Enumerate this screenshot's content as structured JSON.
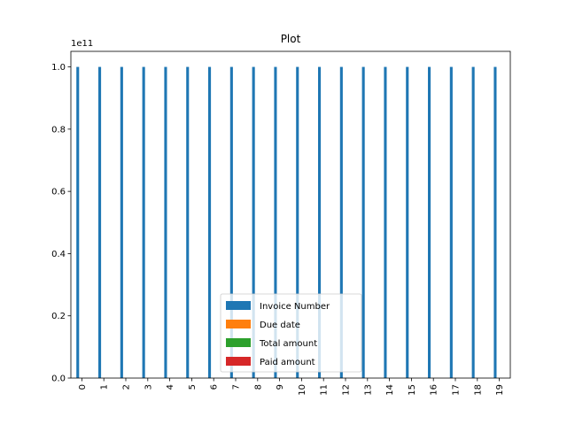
{
  "chart_data": {
    "type": "bar",
    "title": "Plot",
    "xlabel": "",
    "ylabel": "",
    "y_offset_text": "1e11",
    "ylim": [
      0,
      1.05
    ],
    "y_ticks": [
      "0.0",
      "0.2",
      "0.4",
      "0.6",
      "0.8",
      "1.0"
    ],
    "y_tick_values": [
      0.0,
      0.2,
      0.4,
      0.6,
      0.8,
      1.0
    ],
    "categories": [
      "0",
      "1",
      "2",
      "3",
      "4",
      "5",
      "6",
      "7",
      "8",
      "9",
      "10",
      "11",
      "12",
      "13",
      "14",
      "15",
      "16",
      "17",
      "18",
      "19"
    ],
    "series": [
      {
        "name": "Invoice Number",
        "color": "#1f77b4",
        "values": [
          1.0,
          1.0,
          1.0,
          1.0,
          1.0,
          1.0,
          1.0,
          1.0,
          1.0,
          1.0,
          1.0,
          1.0,
          1.0,
          1.0,
          1.0,
          1.0,
          1.0,
          1.0,
          1.0,
          1.0
        ]
      },
      {
        "name": "Due date",
        "color": "#ff7f0e",
        "values": [
          0,
          0,
          0,
          0,
          0,
          0,
          0,
          0,
          0,
          0,
          0,
          0,
          0,
          0,
          0,
          0,
          0,
          0,
          0,
          0
        ]
      },
      {
        "name": "Total amount",
        "color": "#2ca02c",
        "values": [
          0,
          0,
          0,
          0,
          0,
          0,
          0,
          0,
          0,
          0,
          0,
          0,
          0,
          0,
          0,
          0,
          0,
          0,
          0,
          0
        ]
      },
      {
        "name": "Paid amount",
        "color": "#d62728",
        "values": [
          0,
          0,
          0,
          0,
          0,
          0,
          0,
          0,
          0,
          0,
          0,
          0,
          0,
          0,
          0,
          0,
          0,
          0,
          0,
          0
        ]
      }
    ],
    "grid": false,
    "legend_position": "lower-center"
  }
}
